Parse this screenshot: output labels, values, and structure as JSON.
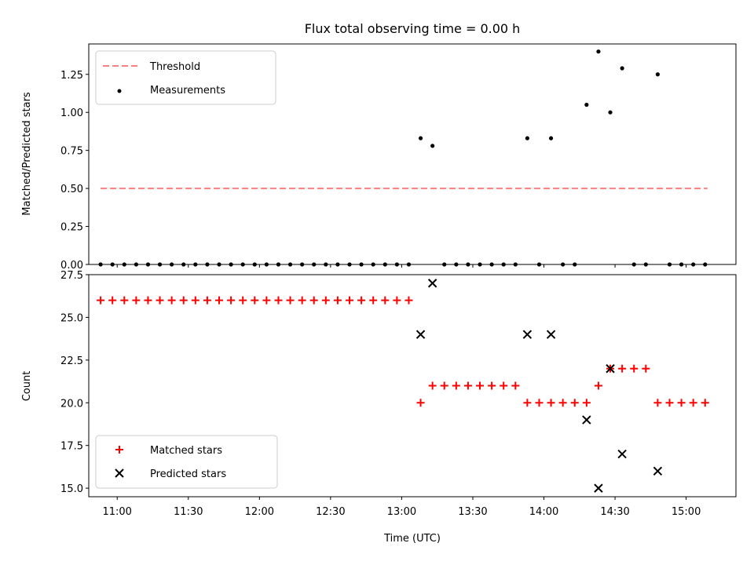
{
  "chart_data": [
    {
      "type": "scatter",
      "title": "Flux total observing time = 0.00 h",
      "xlabel": "",
      "ylabel": "Matched/Predicted stars",
      "ylim": [
        0,
        1.45
      ],
      "xlim": [
        "10:48",
        "15:21"
      ],
      "yticks": [
        "0.00",
        "0.25",
        "0.50",
        "0.75",
        "1.00",
        "1.25"
      ],
      "grid": false,
      "legend_position": "upper-left",
      "threshold": {
        "name": "Threshold",
        "value": 0.5,
        "x_start": "10:53",
        "x_end": "15:09",
        "color": "#ff7f7f",
        "style": "dashed"
      },
      "series": [
        {
          "name": "Measurements",
          "color": "#000000",
          "marker": "dot",
          "points": [
            [
              "10:53",
              0
            ],
            [
              "10:58",
              0
            ],
            [
              "11:03",
              0
            ],
            [
              "11:08",
              0
            ],
            [
              "11:13",
              0
            ],
            [
              "11:18",
              0
            ],
            [
              "11:23",
              0
            ],
            [
              "11:28",
              0
            ],
            [
              "11:33",
              0
            ],
            [
              "11:38",
              0
            ],
            [
              "11:43",
              0
            ],
            [
              "11:48",
              0
            ],
            [
              "11:53",
              0
            ],
            [
              "11:58",
              0
            ],
            [
              "12:03",
              0
            ],
            [
              "12:08",
              0
            ],
            [
              "12:13",
              0
            ],
            [
              "12:18",
              0
            ],
            [
              "12:23",
              0
            ],
            [
              "12:28",
              0
            ],
            [
              "12:33",
              0
            ],
            [
              "12:38",
              0
            ],
            [
              "12:43",
              0
            ],
            [
              "12:48",
              0
            ],
            [
              "12:53",
              0
            ],
            [
              "12:58",
              0
            ],
            [
              "13:03",
              0
            ],
            [
              "13:08",
              0.83
            ],
            [
              "13:13",
              0.78
            ],
            [
              "13:18",
              0
            ],
            [
              "13:23",
              0
            ],
            [
              "13:28",
              0
            ],
            [
              "13:33",
              0
            ],
            [
              "13:38",
              0
            ],
            [
              "13:43",
              0
            ],
            [
              "13:48",
              0
            ],
            [
              "13:53",
              0.83
            ],
            [
              "13:58",
              0
            ],
            [
              "14:03",
              0.83
            ],
            [
              "14:08",
              0
            ],
            [
              "14:13",
              0
            ],
            [
              "14:18",
              1.05
            ],
            [
              "14:23",
              1.4
            ],
            [
              "14:28",
              1.0
            ],
            [
              "14:33",
              1.29
            ],
            [
              "14:38",
              0
            ],
            [
              "14:43",
              0
            ],
            [
              "14:48",
              1.25
            ],
            [
              "14:53",
              0
            ],
            [
              "14:58",
              0
            ],
            [
              "15:03",
              0
            ],
            [
              "15:08",
              0
            ]
          ]
        }
      ]
    },
    {
      "type": "scatter",
      "title": "",
      "xlabel": "Time (UTC)",
      "ylabel": "Count",
      "ylim": [
        14.5,
        27.5
      ],
      "xlim": [
        "10:48",
        "15:21"
      ],
      "xticks": [
        "11:00",
        "11:30",
        "12:00",
        "12:30",
        "13:00",
        "13:30",
        "14:00",
        "14:30",
        "15:00"
      ],
      "yticks": [
        "15.0",
        "17.5",
        "20.0",
        "22.5",
        "25.0",
        "27.5"
      ],
      "grid": false,
      "legend_position": "lower-left",
      "series": [
        {
          "name": "Matched stars",
          "color": "#ff0000",
          "marker": "plus",
          "points": [
            [
              "10:53",
              26
            ],
            [
              "10:58",
              26
            ],
            [
              "11:03",
              26
            ],
            [
              "11:08",
              26
            ],
            [
              "11:13",
              26
            ],
            [
              "11:18",
              26
            ],
            [
              "11:23",
              26
            ],
            [
              "11:28",
              26
            ],
            [
              "11:33",
              26
            ],
            [
              "11:38",
              26
            ],
            [
              "11:43",
              26
            ],
            [
              "11:48",
              26
            ],
            [
              "11:53",
              26
            ],
            [
              "11:58",
              26
            ],
            [
              "12:03",
              26
            ],
            [
              "12:08",
              26
            ],
            [
              "12:13",
              26
            ],
            [
              "12:18",
              26
            ],
            [
              "12:23",
              26
            ],
            [
              "12:28",
              26
            ],
            [
              "12:33",
              26
            ],
            [
              "12:38",
              26
            ],
            [
              "12:43",
              26
            ],
            [
              "12:48",
              26
            ],
            [
              "12:53",
              26
            ],
            [
              "12:58",
              26
            ],
            [
              "13:03",
              26
            ],
            [
              "13:08",
              20
            ],
            [
              "13:13",
              21
            ],
            [
              "13:18",
              21
            ],
            [
              "13:23",
              21
            ],
            [
              "13:28",
              21
            ],
            [
              "13:33",
              21
            ],
            [
              "13:38",
              21
            ],
            [
              "13:43",
              21
            ],
            [
              "13:48",
              21
            ],
            [
              "13:53",
              20
            ],
            [
              "13:58",
              20
            ],
            [
              "14:03",
              20
            ],
            [
              "14:08",
              20
            ],
            [
              "14:13",
              20
            ],
            [
              "14:18",
              20
            ],
            [
              "14:23",
              21
            ],
            [
              "14:28",
              22
            ],
            [
              "14:33",
              22
            ],
            [
              "14:38",
              22
            ],
            [
              "14:43",
              22
            ],
            [
              "14:48",
              20
            ],
            [
              "14:53",
              20
            ],
            [
              "14:58",
              20
            ],
            [
              "15:03",
              20
            ],
            [
              "15:08",
              20
            ]
          ]
        },
        {
          "name": "Predicted stars",
          "color": "#000000",
          "marker": "x",
          "points": [
            [
              "13:08",
              24
            ],
            [
              "13:13",
              27
            ],
            [
              "13:53",
              24
            ],
            [
              "14:03",
              24
            ],
            [
              "14:18",
              19
            ],
            [
              "14:23",
              15
            ],
            [
              "14:28",
              22
            ],
            [
              "14:33",
              17
            ],
            [
              "14:48",
              16
            ]
          ]
        }
      ]
    }
  ]
}
